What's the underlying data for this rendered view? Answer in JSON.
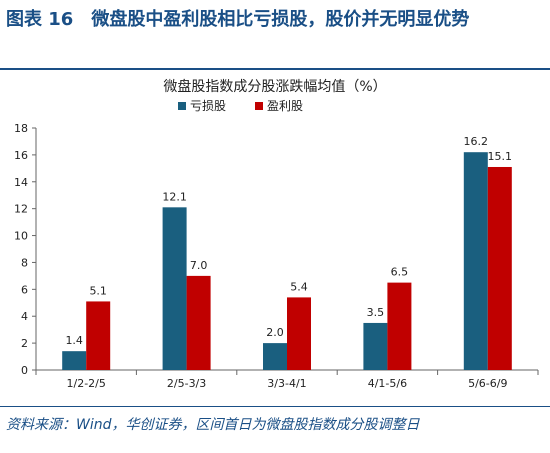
{
  "figure": {
    "title": "图表 16　微盘股中盈利股相比亏损股，股价并无明显优势",
    "source": "资料来源：Wind，华创证券，区间首日为微盘股指数成分股调整日"
  },
  "colors": {
    "loss": "#1a5f7f",
    "profit": "#c00000",
    "frame": "#1a4f86"
  },
  "chart_data": {
    "type": "bar",
    "title": "微盘股指数成分股涨跌幅均值（%）",
    "xlabel": "",
    "ylabel": "",
    "categories": [
      "1/2-2/5",
      "2/5-3/3",
      "3/3-4/1",
      "4/1-5/6",
      "5/6-6/9"
    ],
    "series": [
      {
        "name": "亏损股",
        "values": [
          1.4,
          12.1,
          2.0,
          3.5,
          16.2
        ],
        "labels": [
          "1.4",
          "12.1",
          "2.0",
          "3.5",
          "16.2"
        ]
      },
      {
        "name": "盈利股",
        "values": [
          5.1,
          7.0,
          5.4,
          6.5,
          15.1
        ],
        "labels": [
          "5.1",
          "7.0",
          "5.4",
          "6.5",
          "15.1"
        ]
      }
    ],
    "ylim": [
      0,
      18
    ],
    "yticks": [
      "0",
      "2",
      "4",
      "6",
      "8",
      "10",
      "12",
      "14",
      "16",
      "18"
    ],
    "legend": "top-left",
    "grid": false
  }
}
